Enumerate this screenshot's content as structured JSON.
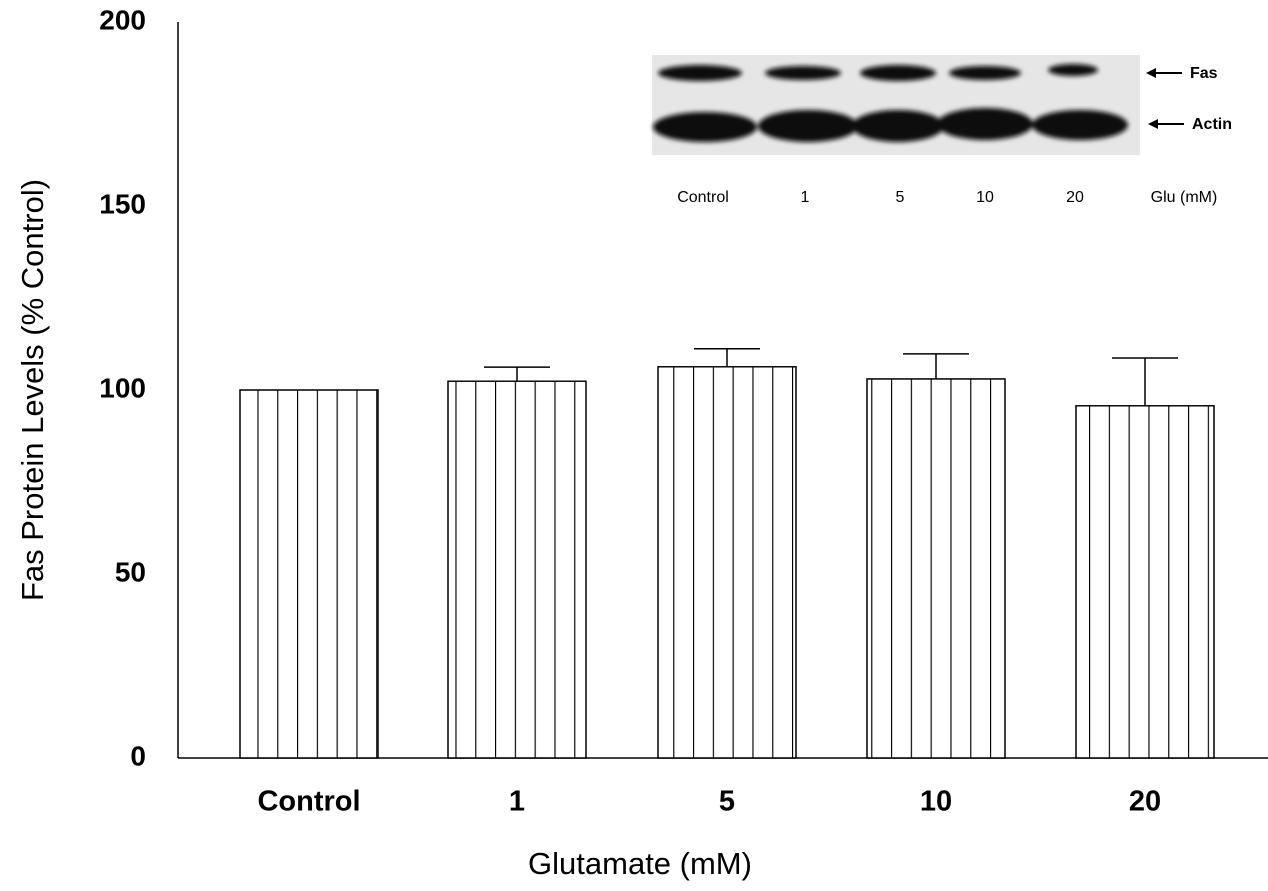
{
  "chart_data": {
    "type": "bar",
    "y_label": "Fas Protein Levels (% Control)",
    "x_label": "Glutamate (mM)",
    "categories": [
      "Control",
      "1",
      "5",
      "10",
      "20"
    ],
    "values": [
      100,
      102.4,
      106.3,
      103,
      95.7
    ],
    "errors": [
      0,
      3.8,
      4.9,
      6.8,
      13
    ],
    "color": "#ffffff",
    "ylim": [
      0,
      200
    ],
    "yticks": [
      0,
      50,
      100,
      150,
      200
    ],
    "inset": {
      "lanes": [
        "Control",
        "1",
        "5",
        "10",
        "20"
      ],
      "treatment_label": "Glu (mM)",
      "bands": [
        "Fas",
        "Actin"
      ]
    }
  }
}
